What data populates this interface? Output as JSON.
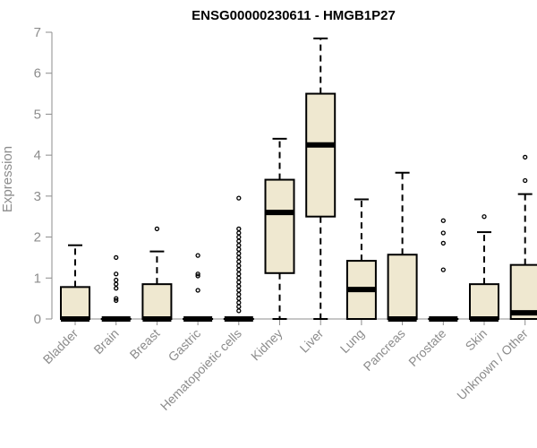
{
  "chart_data": {
    "type": "boxplot",
    "title": "ENSG00000230611 - HMGB1P27",
    "ylabel": "Expression",
    "xlabel": "",
    "ylim": [
      0,
      7
    ],
    "yticks": [
      0,
      1,
      2,
      3,
      4,
      5,
      6,
      7
    ],
    "grid": false,
    "box_color": "#efe8d0",
    "categories": [
      "Bladder",
      "Brain",
      "Breast",
      "Gastric",
      "Hematopoietic cells",
      "Kidney",
      "Liver",
      "Lung",
      "Pancreas",
      "Prostate",
      "Skin",
      "Unknown / Other"
    ],
    "boxes": [
      {
        "min": 0,
        "q1": 0,
        "median": 0,
        "q3": 0.78,
        "max": 1.8,
        "outliers": []
      },
      {
        "min": 0,
        "q1": 0,
        "median": 0,
        "q3": 0,
        "max": 0,
        "outliers": [
          0.45,
          0.5,
          0.75,
          0.85,
          0.95,
          1.1,
          1.5
        ]
      },
      {
        "min": 0,
        "q1": 0,
        "median": 0,
        "q3": 0.85,
        "max": 1.65,
        "outliers": [
          2.2
        ]
      },
      {
        "min": 0,
        "q1": 0,
        "median": 0,
        "q3": 0,
        "max": 0,
        "outliers": [
          0.7,
          1.05,
          1.1,
          1.55
        ]
      },
      {
        "min": 0,
        "q1": 0,
        "median": 0,
        "q3": 0,
        "max": 0,
        "outliers": [
          0.2,
          0.3,
          0.4,
          0.5,
          0.6,
          0.7,
          0.8,
          0.9,
          1.0,
          1.1,
          1.2,
          1.3,
          1.4,
          1.5,
          1.6,
          1.7,
          1.8,
          1.9,
          2.0,
          2.1,
          2.2,
          2.95
        ]
      },
      {
        "min": 0,
        "q1": 1.12,
        "median": 2.6,
        "q3": 3.4,
        "max": 4.4,
        "outliers": []
      },
      {
        "min": 0,
        "q1": 2.5,
        "median": 4.25,
        "q3": 5.5,
        "max": 6.85,
        "outliers": []
      },
      {
        "min": 0,
        "q1": 0,
        "median": 0.72,
        "q3": 1.42,
        "max": 2.92,
        "outliers": []
      },
      {
        "min": 0,
        "q1": 0,
        "median": 0,
        "q3": 1.57,
        "max": 3.57,
        "outliers": []
      },
      {
        "min": 0,
        "q1": 0,
        "median": 0,
        "q3": 0,
        "max": 0,
        "outliers": [
          1.2,
          1.85,
          2.1,
          2.4
        ]
      },
      {
        "min": 0,
        "q1": 0,
        "median": 0,
        "q3": 0.85,
        "max": 2.12,
        "outliers": [
          2.5
        ]
      },
      {
        "min": 0,
        "q1": 0,
        "median": 0.15,
        "q3": 1.32,
        "max": 3.05,
        "outliers": [
          3.38,
          3.95
        ]
      }
    ]
  }
}
